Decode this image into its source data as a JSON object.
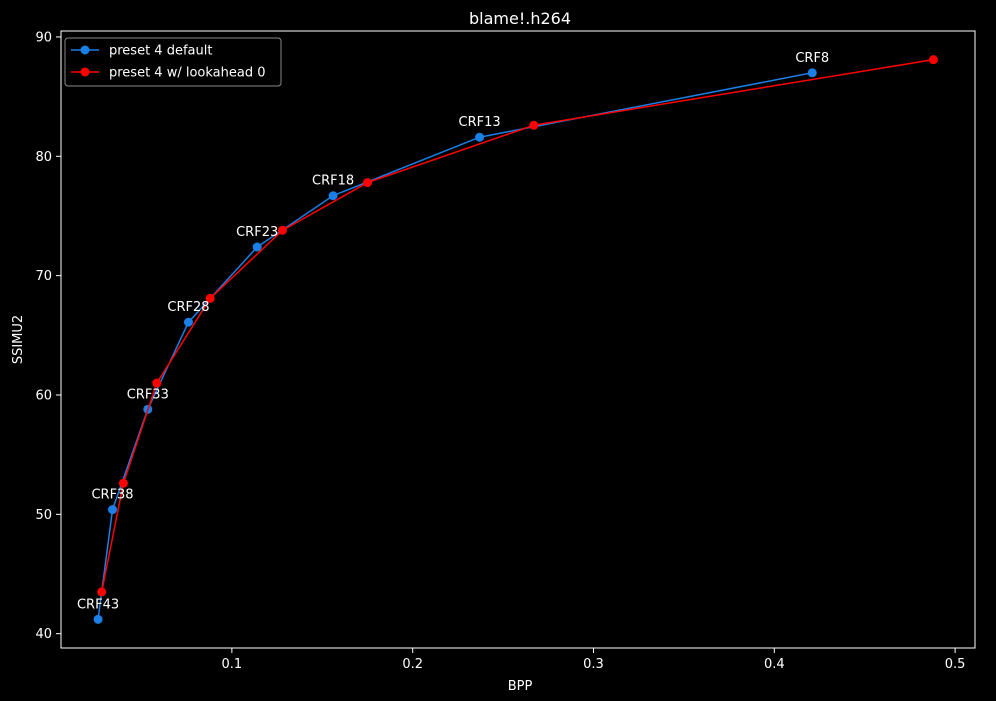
{
  "chart_data": {
    "type": "line",
    "title": "blame!.h264",
    "xlabel": "BPP",
    "ylabel": "SSIMU2",
    "xlim": [
      0.0055,
      0.511
    ],
    "ylim": [
      38.8,
      90.5
    ],
    "x_ticks": [
      0.1,
      0.2,
      0.3,
      0.4,
      0.5
    ],
    "x_tick_labels": [
      "0.1",
      "0.2",
      "0.3",
      "0.4",
      "0.5"
    ],
    "y_ticks": [
      40,
      50,
      60,
      70,
      80,
      90
    ],
    "y_tick_labels": [
      "40",
      "50",
      "60",
      "70",
      "80",
      "90"
    ],
    "grid": false,
    "legend": "top-left",
    "series": [
      {
        "name": "preset 4 default",
        "color": "#1a7fe6",
        "x": [
          0.026,
          0.034,
          0.0535,
          0.076,
          0.114,
          0.156,
          0.237,
          0.421
        ],
        "y": [
          41.2,
          50.4,
          58.8,
          66.1,
          72.4,
          76.7,
          81.6,
          87.0
        ]
      },
      {
        "name": "preset 4 w/ lookahead 0",
        "color": "#ff0000",
        "x": [
          0.028,
          0.04,
          0.0585,
          0.088,
          0.128,
          0.175,
          0.267,
          0.488
        ],
        "y": [
          43.5,
          52.6,
          61.0,
          68.1,
          73.8,
          77.8,
          82.6,
          88.1
        ]
      }
    ],
    "annotations": [
      {
        "text": "CRF43",
        "x": 0.026,
        "y": 41.2
      },
      {
        "text": "CRF38",
        "x": 0.034,
        "y": 50.4
      },
      {
        "text": "CRF33",
        "x": 0.0535,
        "y": 58.8
      },
      {
        "text": "CRF28",
        "x": 0.076,
        "y": 66.1
      },
      {
        "text": "CRF23",
        "x": 0.114,
        "y": 72.4
      },
      {
        "text": "CRF18",
        "x": 0.156,
        "y": 76.7
      },
      {
        "text": "CRF13",
        "x": 0.237,
        "y": 81.6
      },
      {
        "text": "CRF8",
        "x": 0.421,
        "y": 87.0
      }
    ]
  }
}
